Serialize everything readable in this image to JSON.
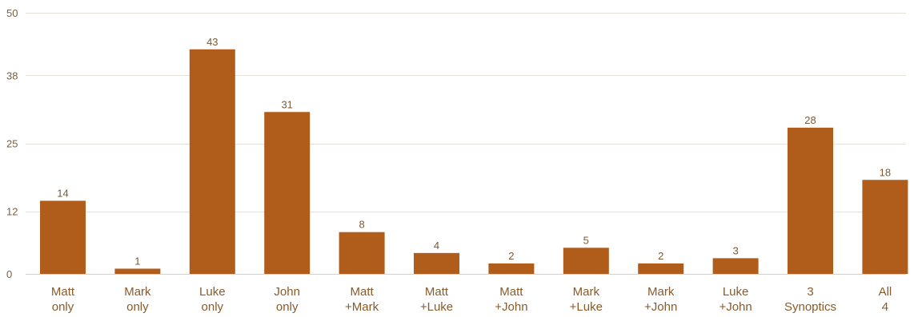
{
  "chart_data": {
    "type": "bar",
    "title": "",
    "xlabel": "",
    "ylabel": "",
    "ylim": [
      0,
      50
    ],
    "yticks": [
      0,
      12,
      25,
      38,
      50
    ],
    "grid": true,
    "bar_color": "#b05c1a",
    "categories": [
      [
        "Matt",
        "only"
      ],
      [
        "Mark",
        "only"
      ],
      [
        "Luke",
        "only"
      ],
      [
        "John",
        "only"
      ],
      [
        "Matt",
        "+Mark"
      ],
      [
        "Matt",
        "+Luke"
      ],
      [
        "Matt",
        "+John"
      ],
      [
        "Mark",
        "+Luke"
      ],
      [
        "Mark",
        "+John"
      ],
      [
        "Luke",
        "+John"
      ],
      [
        "3",
        "Synoptics"
      ],
      [
        "All",
        "4"
      ]
    ],
    "values": [
      14,
      1,
      43,
      31,
      8,
      4,
      2,
      5,
      2,
      3,
      28,
      18
    ]
  }
}
